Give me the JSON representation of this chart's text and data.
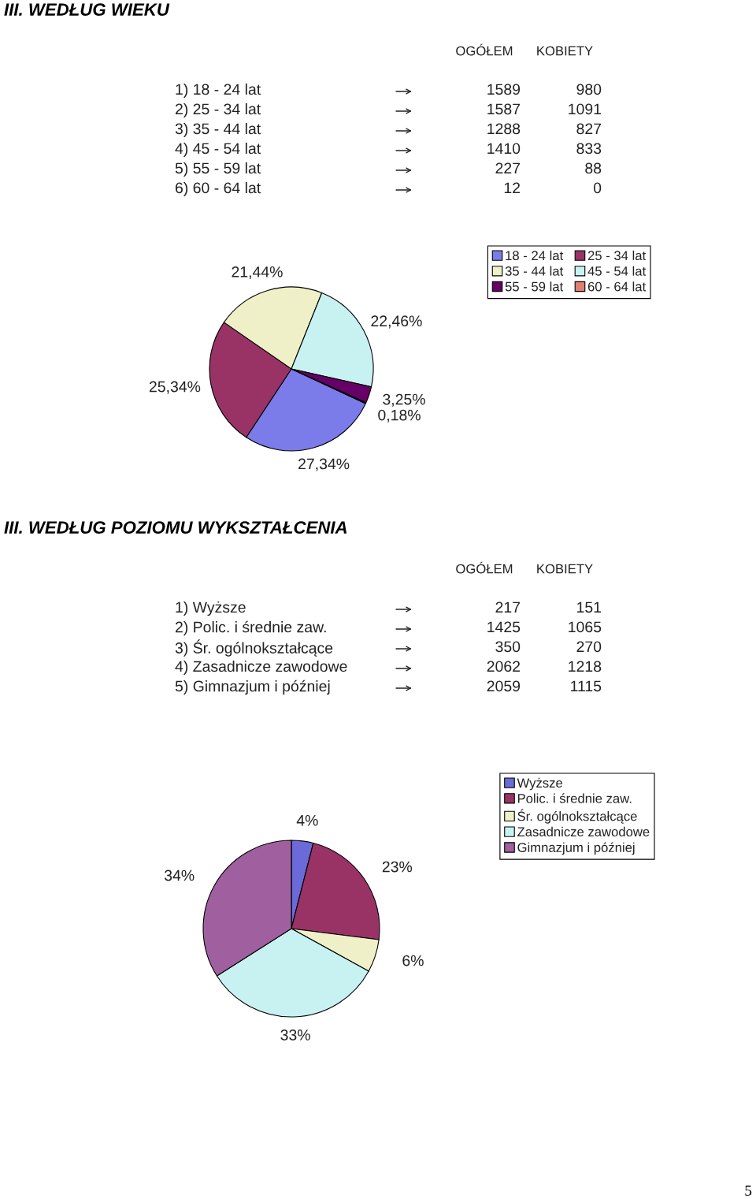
{
  "chart_data": [
    {
      "type": "other",
      "title": "III. WEDŁUG WIEKU",
      "categories": [
        "1) 18 - 24 lat",
        "2) 25 - 34 lat",
        "3) 35 - 44 lat",
        "4) 45 - 54 lat",
        "5) 55 - 59 lat",
        "6) 60 - 64 lat"
      ],
      "series": [
        {
          "name": "OGÓŁEM",
          "values": [
            1589,
            1587,
            1288,
            1410,
            227,
            12
          ]
        },
        {
          "name": "KOBIETY",
          "values": [
            980,
            1091,
            827,
            833,
            88,
            0
          ]
        }
      ],
      "data_labels": true
    },
    {
      "type": "pie",
      "categories": [
        "18 - 24 lat",
        "25 - 34 lat",
        "35 - 44 lat",
        "45 - 54 lat",
        "55 - 59 lat",
        "60 - 64 lat"
      ],
      "values": [
        27.34,
        25.34,
        21.44,
        22.46,
        3.25,
        0.18
      ],
      "value_labels": [
        "27,34%",
        "25,34%",
        "21,44%",
        "22,46%",
        "3,25%",
        "0,18%"
      ],
      "colors": [
        "#7b7bea",
        "#993366",
        "#f0f0c8",
        "#c8f2f2",
        "#660066",
        "#e08070"
      ],
      "legend": "top right"
    },
    {
      "type": "other",
      "title": "III. WEDŁUG POZIOMU WYKSZTAŁCENIA",
      "categories": [
        "1) Wyższe",
        "2) Polic. i średnie zaw.",
        "3) Śr. ogólnokształcące",
        "4) Zasadnicze zawodowe",
        "5) Gimnazjum i później"
      ],
      "series": [
        {
          "name": "OGÓŁEM",
          "values": [
            217,
            1425,
            350,
            2062,
            2059
          ]
        },
        {
          "name": "KOBIETY",
          "values": [
            151,
            1065,
            270,
            1218,
            1115
          ]
        }
      ],
      "data_labels": true
    },
    {
      "type": "pie",
      "categories": [
        "Wyższe",
        "Polic. i średnie zaw.",
        "Śr. ogólnokształcące",
        "Zasadnicze zawodowe",
        "Gimnazjum i później"
      ],
      "values": [
        4,
        23,
        6,
        33,
        34
      ],
      "value_labels": [
        "4%",
        "23%",
        "6%",
        "33%",
        "34%"
      ],
      "colors": [
        "#6a6ad8",
        "#993366",
        "#f0f0c8",
        "#c8f2f2",
        "#a060a0"
      ],
      "legend": "top right",
      "annotations": [
        "5"
      ]
    }
  ]
}
